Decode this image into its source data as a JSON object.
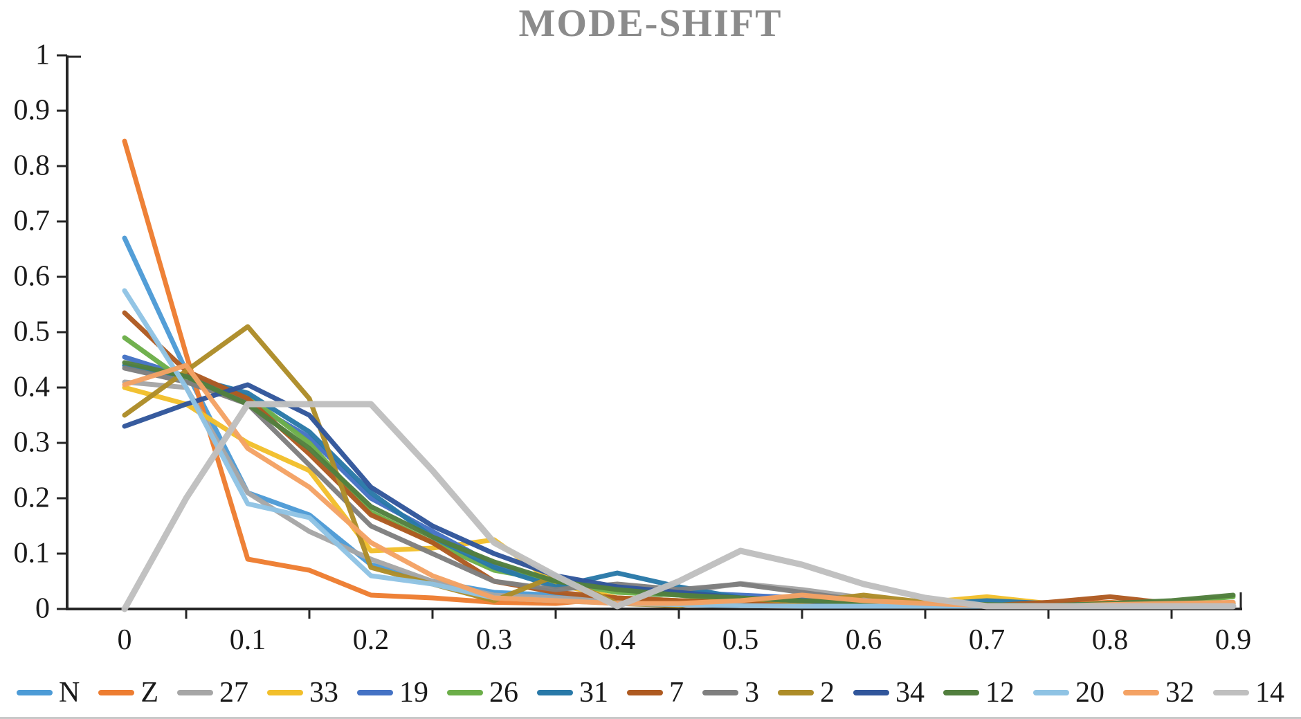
{
  "title": "MODE-SHIFT",
  "title_color": "#8b8b8b",
  "axis_color": "#262626",
  "chart_data": {
    "type": "line",
    "title": "MODE-SHIFT",
    "xlabel": "",
    "ylabel": "",
    "xlim": [
      0,
      0.9
    ],
    "ylim": [
      0,
      1
    ],
    "grid": false,
    "legend_position": "bottom",
    "x": [
      0,
      0.05,
      0.1,
      0.15,
      0.2,
      0.25,
      0.3,
      0.35,
      0.4,
      0.45,
      0.5,
      0.55,
      0.6,
      0.65,
      0.7,
      0.75,
      0.8,
      0.85,
      0.9
    ],
    "x_tick_labels": [
      "0",
      "0.1",
      "0.2",
      "0.3",
      "0.4",
      "0.5",
      "0.6",
      "0.7",
      "0.8",
      "0.9"
    ],
    "x_tick_values": [
      0,
      0.1,
      0.2,
      0.3,
      0.4,
      0.5,
      0.6,
      0.7,
      0.8,
      0.9
    ],
    "y_tick_labels": [
      "0",
      "0.1",
      "0.2",
      "0.3",
      "0.4",
      "0.5",
      "0.6",
      "0.7",
      "0.8",
      "0.9",
      "1"
    ],
    "y_tick_values": [
      0,
      0.1,
      0.2,
      0.3,
      0.4,
      0.5,
      0.6,
      0.7,
      0.8,
      0.9,
      1
    ],
    "minor_x_ticks": [
      0.05,
      0.15,
      0.25,
      0.35,
      0.45,
      0.55,
      0.65,
      0.75,
      0.85
    ],
    "series": [
      {
        "name": "N",
        "color": "#4d9bd6",
        "width": 7,
        "values": [
          0.67,
          0.43,
          0.21,
          0.17,
          0.08,
          0.05,
          0.03,
          0.025,
          0.02,
          0.015,
          0.012,
          0.01,
          0.008,
          0.005,
          0.005,
          0.005,
          0.005,
          0.008,
          0.012
        ]
      },
      {
        "name": "Z",
        "color": "#ed7d31",
        "width": 7,
        "values": [
          0.845,
          0.46,
          0.09,
          0.07,
          0.025,
          0.02,
          0.012,
          0.01,
          0.02,
          0.012,
          0.006,
          0.005,
          0.005,
          0.005,
          0.005,
          0.008,
          0.012,
          0.006,
          0.01
        ]
      },
      {
        "name": "27",
        "color": "#a6a6a6",
        "width": 7,
        "values": [
          0.41,
          0.4,
          0.21,
          0.14,
          0.09,
          0.05,
          0.025,
          0.02,
          0.015,
          0.03,
          0.046,
          0.035,
          0.02,
          0.01,
          0.005,
          0.005,
          0.005,
          0.005,
          0.005
        ]
      },
      {
        "name": "33",
        "color": "#f2bf2b",
        "width": 7,
        "values": [
          0.4,
          0.37,
          0.3,
          0.25,
          0.105,
          0.11,
          0.125,
          0.045,
          0.02,
          0.015,
          0.01,
          0.008,
          0.006,
          0.012,
          0.022,
          0.01,
          0.005,
          0.005,
          0.006
        ]
      },
      {
        "name": "19",
        "color": "#4472c4",
        "width": 7,
        "values": [
          0.455,
          0.42,
          0.375,
          0.31,
          0.2,
          0.14,
          0.08,
          0.05,
          0.035,
          0.03,
          0.025,
          0.02,
          0.015,
          0.01,
          0.008,
          0.005,
          0.005,
          0.005,
          0.008
        ]
      },
      {
        "name": "26",
        "color": "#6cae49",
        "width": 7,
        "values": [
          0.49,
          0.41,
          0.385,
          0.3,
          0.175,
          0.12,
          0.07,
          0.05,
          0.03,
          0.025,
          0.015,
          0.012,
          0.01,
          0.008,
          0.005,
          0.005,
          0.006,
          0.012,
          0.022
        ]
      },
      {
        "name": "31",
        "color": "#2979a8",
        "width": 7,
        "values": [
          0.44,
          0.42,
          0.39,
          0.32,
          0.21,
          0.13,
          0.075,
          0.04,
          0.065,
          0.04,
          0.02,
          0.015,
          0.01,
          0.008,
          0.015,
          0.01,
          0.006,
          0.005,
          0.006
        ]
      },
      {
        "name": "7",
        "color": "#ae5a21",
        "width": 7,
        "values": [
          0.535,
          0.43,
          0.38,
          0.28,
          0.17,
          0.12,
          0.05,
          0.03,
          0.02,
          0.015,
          0.012,
          0.008,
          0.006,
          0.005,
          0.006,
          0.012,
          0.022,
          0.01,
          0.005
        ]
      },
      {
        "name": "3",
        "color": "#7f7f7f",
        "width": 7,
        "values": [
          0.435,
          0.41,
          0.37,
          0.26,
          0.15,
          0.1,
          0.05,
          0.035,
          0.045,
          0.035,
          0.045,
          0.03,
          0.015,
          0.008,
          0.005,
          0.005,
          0.005,
          0.005,
          0.005
        ]
      },
      {
        "name": "2",
        "color": "#ad8c28",
        "width": 7,
        "values": [
          0.35,
          0.43,
          0.51,
          0.38,
          0.075,
          0.045,
          0.015,
          0.06,
          0.01,
          0.006,
          0.02,
          0.012,
          0.025,
          0.012,
          0.005,
          0.005,
          0.006,
          0.008,
          0.01
        ]
      },
      {
        "name": "34",
        "color": "#31569b",
        "width": 7,
        "values": [
          0.33,
          0.37,
          0.405,
          0.35,
          0.22,
          0.15,
          0.1,
          0.06,
          0.04,
          0.03,
          0.02,
          0.015,
          0.01,
          0.008,
          0.005,
          0.005,
          0.005,
          0.005,
          0.006
        ]
      },
      {
        "name": "12",
        "color": "#527f3e",
        "width": 7,
        "values": [
          0.445,
          0.42,
          0.37,
          0.29,
          0.185,
          0.13,
          0.085,
          0.05,
          0.035,
          0.025,
          0.02,
          0.015,
          0.012,
          0.01,
          0.008,
          0.006,
          0.01,
          0.015,
          0.025
        ]
      },
      {
        "name": "20",
        "color": "#8fc3e4",
        "width": 7,
        "values": [
          0.575,
          0.4,
          0.19,
          0.165,
          0.06,
          0.045,
          0.02,
          0.015,
          0.01,
          0.008,
          0.006,
          0.005,
          0.005,
          0.005,
          0.005,
          0.005,
          0.005,
          0.005,
          0.006
        ]
      },
      {
        "name": "32",
        "color": "#f4a264",
        "width": 7,
        "values": [
          0.405,
          0.44,
          0.29,
          0.22,
          0.12,
          0.06,
          0.02,
          0.015,
          0.01,
          0.01,
          0.015,
          0.025,
          0.015,
          0.01,
          0.006,
          0.005,
          0.008,
          0.01,
          0.012
        ]
      },
      {
        "name": "14",
        "color": "#bfbfbf",
        "width": 9,
        "values": [
          0.0,
          0.2,
          0.37,
          0.37,
          0.37,
          0.25,
          0.12,
          0.06,
          0.005,
          0.05,
          0.105,
          0.08,
          0.045,
          0.02,
          0.005,
          0.005,
          0.005,
          0.005,
          0.005
        ]
      }
    ]
  }
}
